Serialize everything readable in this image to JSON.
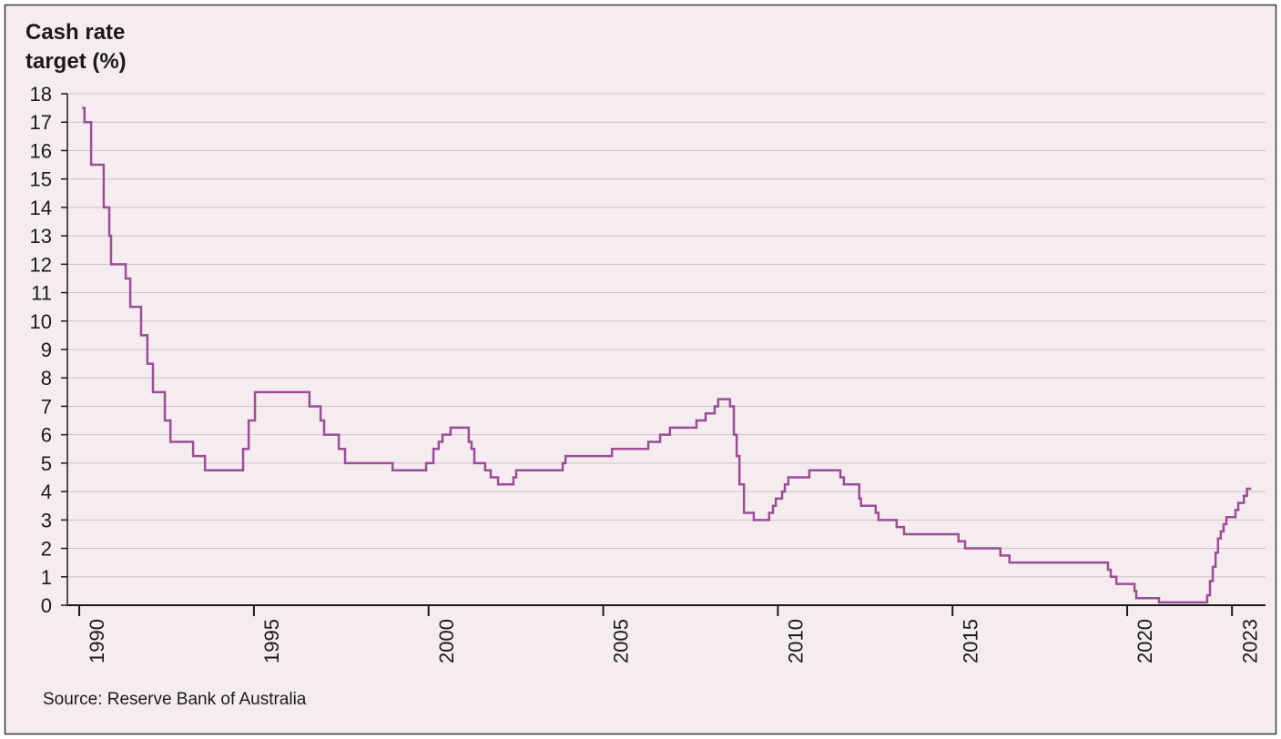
{
  "chart_data": {
    "type": "line",
    "title": "Cash rate target (%)",
    "source": "Source: Reserve Bank of Australia",
    "color": "#9b4d96",
    "grid": true,
    "xlim": [
      1989.66,
      2023.96
    ],
    "xticks": [
      1990,
      1995,
      2000,
      2005,
      2010,
      2015,
      2020,
      2023
    ],
    "ylim": [
      0,
      18
    ],
    "yticks": [
      0,
      1,
      2,
      3,
      4,
      5,
      6,
      7,
      8,
      9,
      10,
      11,
      12,
      13,
      14,
      15,
      16,
      17,
      18
    ],
    "x": [
      1990.08,
      1990.15,
      1990.15,
      1990.34,
      1990.34,
      1990.7,
      1990.7,
      1990.86,
      1990.86,
      1990.91,
      1990.91,
      1991.33,
      1991.33,
      1991.46,
      1991.46,
      1991.77,
      1991.77,
      1991.95,
      1991.95,
      1992.11,
      1992.11,
      1992.45,
      1992.45,
      1992.61,
      1992.61,
      1993.26,
      1993.26,
      1993.6,
      1993.6,
      1994.69,
      1994.69,
      1994.85,
      1994.85,
      1995.03,
      1995.03,
      1996.59,
      1996.59,
      1996.91,
      1996.91,
      1997.01,
      1997.01,
      1997.43,
      1997.43,
      1997.61,
      1997.61,
      1998.97,
      1998.97,
      1999.93,
      1999.93,
      2000.14,
      2000.14,
      2000.29,
      2000.29,
      2000.4,
      2000.4,
      2000.63,
      2000.63,
      2001.15,
      2001.15,
      2001.23,
      2001.23,
      2001.31,
      2001.31,
      2001.62,
      2001.62,
      2001.78,
      2001.78,
      2001.99,
      2001.99,
      2002.43,
      2002.43,
      2002.51,
      2002.51,
      2003.84,
      2003.84,
      2003.92,
      2003.92,
      2005.25,
      2005.25,
      2006.29,
      2006.29,
      2006.63,
      2006.63,
      2006.91,
      2006.91,
      2007.67,
      2007.67,
      2007.93,
      2007.93,
      2008.19,
      2008.19,
      2008.29,
      2008.29,
      2008.63,
      2008.63,
      2008.74,
      2008.74,
      2008.82,
      2008.82,
      2008.9,
      2008.9,
      2009.03,
      2009.03,
      2009.31,
      2009.31,
      2009.75,
      2009.75,
      2009.86,
      2009.86,
      2009.94,
      2009.94,
      2010.12,
      2010.12,
      2010.2,
      2010.2,
      2010.3,
      2010.3,
      2010.9,
      2010.9,
      2011.79,
      2011.79,
      2011.89,
      2011.89,
      2012.33,
      2012.33,
      2012.38,
      2012.38,
      2012.8,
      2012.8,
      2012.88,
      2012.88,
      2013.4,
      2013.4,
      2013.61,
      2013.61,
      2015.17,
      2015.17,
      2015.36,
      2015.36,
      2016.37,
      2016.37,
      2016.63,
      2016.63,
      2019.45,
      2019.45,
      2019.53,
      2019.53,
      2019.69,
      2019.69,
      2020.21,
      2020.21,
      2020.26,
      2020.26,
      2020.91,
      2020.91,
      2022.29,
      2022.29,
      2022.37,
      2022.37,
      2022.45,
      2022.45,
      2022.53,
      2022.53,
      2022.6,
      2022.6,
      2022.68,
      2022.68,
      2022.76,
      2022.76,
      2022.84,
      2022.84,
      2023.1,
      2023.1,
      2023.18,
      2023.18,
      2023.34,
      2023.34,
      2023.43,
      2023.43,
      2023.55
    ],
    "values": [
      17.5,
      17.5,
      17,
      17,
      15.5,
      15.5,
      14,
      14,
      13,
      13,
      12,
      12,
      11.5,
      11.5,
      10.5,
      10.5,
      9.5,
      9.5,
      8.5,
      8.5,
      7.5,
      7.5,
      6.5,
      6.5,
      5.75,
      5.75,
      5.25,
      5.25,
      4.75,
      4.75,
      5.5,
      5.5,
      6.5,
      6.5,
      7.5,
      7.5,
      7,
      7,
      6.5,
      6.5,
      6,
      6,
      5.5,
      5.5,
      5,
      5,
      4.75,
      4.75,
      5,
      5,
      5.5,
      5.5,
      5.75,
      5.75,
      6,
      6,
      6.25,
      6.25,
      5.75,
      5.75,
      5.5,
      5.5,
      5,
      5,
      4.75,
      4.75,
      4.5,
      4.5,
      4.25,
      4.25,
      4.5,
      4.5,
      4.75,
      4.75,
      5,
      5,
      5.25,
      5.25,
      5.5,
      5.5,
      5.75,
      5.75,
      6,
      6,
      6.25,
      6.25,
      6.5,
      6.5,
      6.75,
      6.75,
      7,
      7,
      7.25,
      7.25,
      7,
      7,
      6,
      6,
      5.25,
      5.25,
      4.25,
      4.25,
      3.25,
      3.25,
      3,
      3,
      3.25,
      3.25,
      3.5,
      3.5,
      3.75,
      3.75,
      4,
      4,
      4.25,
      4.25,
      4.5,
      4.5,
      4.75,
      4.75,
      4.5,
      4.5,
      4.25,
      4.25,
      3.75,
      3.75,
      3.5,
      3.5,
      3.25,
      3.25,
      3,
      3,
      2.75,
      2.75,
      2.5,
      2.5,
      2.25,
      2.25,
      2,
      2,
      1.75,
      1.75,
      1.5,
      1.5,
      1.25,
      1.25,
      1,
      1,
      0.75,
      0.75,
      0.5,
      0.5,
      0.25,
      0.25,
      0.1,
      0.1,
      0.35,
      0.35,
      0.85,
      0.85,
      1.35,
      1.35,
      1.85,
      1.85,
      2.35,
      2.35,
      2.6,
      2.6,
      2.85,
      2.85,
      3.1,
      3.1,
      3.35,
      3.35,
      3.6,
      3.6,
      3.85,
      3.85,
      4.1,
      4.1
    ]
  }
}
